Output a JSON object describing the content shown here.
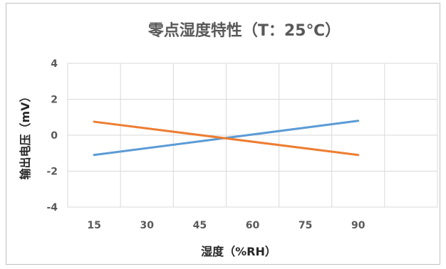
{
  "chart_data": {
    "type": "line",
    "title": "零点湿度特性（T：25℃）",
    "xlabel": "湿度（%RH）",
    "ylabel": "输出电压（mV）",
    "x": [
      15,
      90
    ],
    "x_ticks": [
      15,
      30,
      45,
      60,
      75,
      90
    ],
    "y_ticks": [
      4,
      2,
      0,
      -2,
      -4
    ],
    "xlim": [
      7.5,
      112.5
    ],
    "ylim": [
      -4,
      4
    ],
    "grid": true,
    "series": [
      {
        "values": [
          -1.1,
          0.8
        ],
        "color": "#5b9bd5"
      },
      {
        "values": [
          0.75,
          -1.1
        ],
        "color": "#ed7d31"
      }
    ]
  },
  "colors": {
    "grid": "#d9d9d9",
    "frame": "#bfbfbf"
  }
}
